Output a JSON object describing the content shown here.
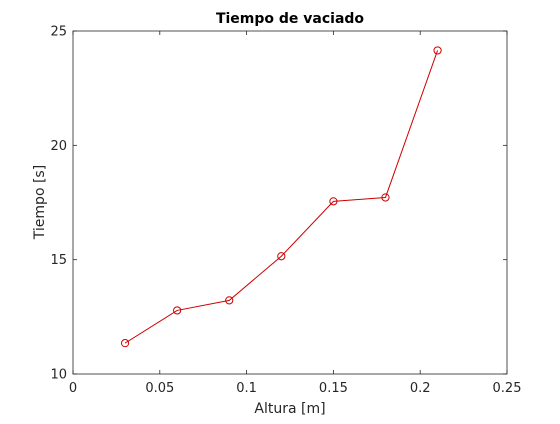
{
  "chart_data": {
    "type": "line",
    "title": "Tiempo de vaciado",
    "xlabel": "Altura [m]",
    "ylabel": "Tiempo [s]",
    "xlim": [
      0,
      0.25
    ],
    "ylim": [
      10,
      25
    ],
    "xticks": [
      0,
      0.05,
      0.1,
      0.15,
      0.2,
      0.25
    ],
    "xtick_labels": [
      "0",
      "0.05",
      "0.1",
      "0.15",
      "0.2",
      "0.25"
    ],
    "yticks": [
      10,
      15,
      20,
      25
    ],
    "ytick_labels": [
      "10",
      "15",
      "20",
      "25"
    ],
    "grid": false,
    "marker": "circle",
    "series": [
      {
        "color": "#cc0000",
        "x": [
          0.03,
          0.06,
          0.09,
          0.12,
          0.15,
          0.18,
          0.21
        ],
        "y": [
          11.35,
          12.78,
          13.22,
          15.15,
          17.55,
          17.72,
          24.15
        ]
      }
    ]
  }
}
